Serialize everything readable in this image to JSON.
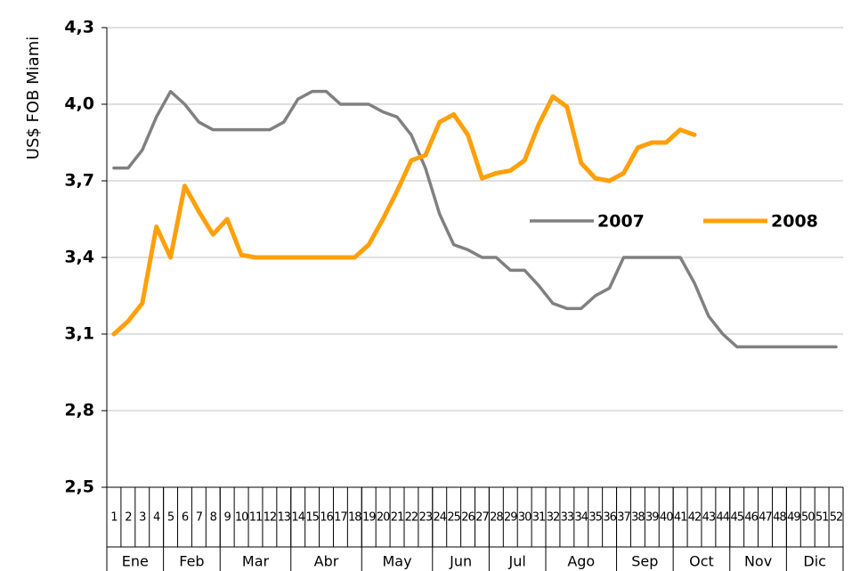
{
  "chart_data": {
    "type": "line",
    "y_label": "US$ FOB Miami",
    "categories": [
      "1",
      "2",
      "3",
      "4",
      "5",
      "6",
      "7",
      "8",
      "9",
      "10",
      "11",
      "12",
      "13",
      "14",
      "15",
      "16",
      "17",
      "18",
      "19",
      "20",
      "21",
      "22",
      "23",
      "24",
      "25",
      "26",
      "27",
      "28",
      "29",
      "30",
      "31",
      "32",
      "33",
      "34",
      "35",
      "36",
      "37",
      "38",
      "39",
      "40",
      "41",
      "42",
      "43",
      "44",
      "45",
      "46",
      "47",
      "48",
      "49",
      "50",
      "51",
      "52"
    ],
    "months": [
      "Ene",
      "Feb",
      "Mar",
      "Abr",
      "May",
      "Jun",
      "Jul",
      "Ago",
      "Sep",
      "Oct",
      "Nov",
      "Dic"
    ],
    "series": [
      {
        "name": "2007",
        "color": "#808080",
        "values": [
          3.75,
          3.75,
          3.82,
          3.95,
          4.05,
          4.0,
          3.93,
          3.9,
          3.9,
          3.9,
          3.9,
          3.9,
          3.93,
          4.02,
          4.05,
          4.05,
          4.0,
          4.0,
          4.0,
          3.97,
          3.95,
          3.88,
          3.75,
          3.57,
          3.45,
          3.43,
          3.4,
          3.4,
          3.35,
          3.35,
          3.29,
          3.22,
          3.2,
          3.2,
          3.25,
          3.28,
          3.4,
          3.4,
          3.4,
          3.4,
          3.4,
          3.3,
          3.17,
          3.1,
          3.05,
          3.05,
          3.05,
          3.05,
          3.05,
          3.05,
          3.05,
          3.05
        ]
      },
      {
        "name": "2008",
        "color": "#ffa00a",
        "values": [
          3.1,
          3.15,
          3.22,
          3.52,
          3.4,
          3.68,
          3.58,
          3.49,
          3.55,
          3.41,
          3.4,
          3.4,
          3.4,
          3.4,
          3.4,
          3.4,
          3.4,
          3.4,
          3.45,
          3.55,
          3.66,
          3.78,
          3.8,
          3.93,
          3.96,
          3.88,
          3.71,
          3.73,
          3.74,
          3.78,
          3.92,
          4.03,
          3.99,
          3.77,
          3.71,
          3.7,
          3.73,
          3.83,
          3.85,
          3.85,
          3.9,
          3.88,
          null,
          null,
          null,
          null,
          null,
          null,
          null,
          null,
          null,
          null
        ]
      }
    ],
    "ylim": [
      2.5,
      4.3
    ],
    "yticks": [
      {
        "value": 2.5,
        "label": "2,5"
      },
      {
        "value": 2.8,
        "label": "2,8"
      },
      {
        "value": 3.1,
        "label": "3,1"
      },
      {
        "value": 3.4,
        "label": "3,4"
      },
      {
        "value": 3.7,
        "label": "3,7"
      },
      {
        "value": 4.0,
        "label": "4,0"
      },
      {
        "value": 4.3,
        "label": "4,3"
      }
    ],
    "grid": true,
    "legend": "center-right"
  }
}
